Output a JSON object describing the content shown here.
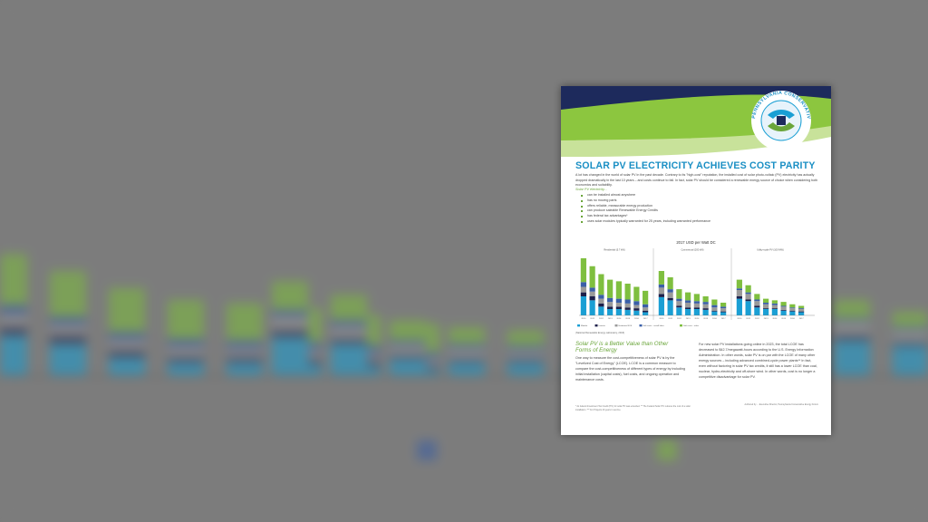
{
  "document": {
    "organization": "PENNSYLVANIA CONSERVATIVE ENERGY FORUM",
    "title": "SOLAR PV ELECTRICITY ACHIEVES COST PARITY",
    "intro": "A lot has changed in the world of solar PV in the past decade. Contrary to its \"high-cost\" reputation, the installed cost of solar photo-voltaic (PV) electricity has actually dropped dramatically in the last 10 years – and costs continue to fall. In fact, solar PV should be considered a renewable energy source of choice when considering both economics and suitability.",
    "intro_sub": "Solar PV electricity...",
    "bullets": [
      "can be installed almost anywhere",
      "has no moving parts",
      "offers reliable, measurable energy production",
      "can produce saleable Renewable Energy Credits",
      "has federal tax advantages*",
      "uses solar modules typically warranted for 25 years, including warranted performance"
    ],
    "chart_title": "2017 USD per Watt DC",
    "chart_source": "(National Renewable Energy Laboratory, 2016)",
    "section_heading": "Solar PV is a Better Value than Other Forms of Energy",
    "left_column": "One way to measure the cost-competitiveness of solar PV is by the \"Levelized Cost of Energy\" (LCOE). LCOE is a common measure to compare the cost-competitiveness of different types of energy by including initial installation (capital costs), fuel costs, and ongoing operation and maintenance costs.",
    "right_column": "For new solar PV installations going online in 2023, the total LCOE has decreased to $42.7/megawatt-hours according to the U.S. Energy Information Administration. In other words, solar PV is on par with the LCOE of many other energy sources – including advanced combined-cycle power plants** In fact, even without factoring in solar PV tax credits, it still has a lower LCOE than coal, nuclear, hydro-electricity and off-shore wind. In other words, cost is no longer a competitive disadvantage for solar PV.",
    "footnote": "* As federal Investment Tax Credit (ITC) for solar PV was extended. ** The Federal Solar ITC reduces the cost of a solar installation. *** For Projects 40 years in service.",
    "authors": "Authored by ... Executive Director, Pennsylvania Conservative Energy Forum"
  },
  "chart_data": {
    "type": "bar",
    "title": "2017 USD per Watt DC",
    "groups": [
      "Residential (5.7 kW)",
      "Commercial (200 kW)",
      "Utility-scale PV (100 MW)"
    ],
    "categories": [
      "2010",
      "2011",
      "2012",
      "2013",
      "2014",
      "2015",
      "2016",
      "2017"
    ],
    "series": [
      {
        "name": "Module",
        "color": "#1a9fd4"
      },
      {
        "name": "Inverter",
        "color": "#1d1f4a"
      },
      {
        "name": "Hardware BOS",
        "color": "#9a9a9a"
      },
      {
        "name": "Soft costs – install labor",
        "color": "#3a5fa8"
      },
      {
        "name": "Soft costs – other",
        "color": "#7fbf3f"
      }
    ],
    "stacks": [
      [
        [
          2.4,
          0.5,
          0.7,
          0.6,
          3.0
        ],
        [
          1.9,
          0.5,
          0.6,
          0.5,
          2.7
        ],
        [
          1.1,
          0.4,
          0.6,
          0.5,
          2.6
        ],
        [
          0.8,
          0.3,
          0.6,
          0.5,
          2.3
        ],
        [
          0.8,
          0.3,
          0.5,
          0.5,
          2.2
        ],
        [
          0.7,
          0.3,
          0.5,
          0.5,
          2.0
        ],
        [
          0.6,
          0.3,
          0.4,
          0.5,
          1.8
        ],
        [
          0.4,
          0.2,
          0.4,
          0.4,
          1.7
        ]
      ],
      [
        [
          2.3,
          0.4,
          0.8,
          0.4,
          1.7
        ],
        [
          1.9,
          0.3,
          0.7,
          0.4,
          1.5
        ],
        [
          1.0,
          0.2,
          0.6,
          0.3,
          1.2
        ],
        [
          0.8,
          0.2,
          0.6,
          0.3,
          1.0
        ],
        [
          0.8,
          0.2,
          0.5,
          0.3,
          0.9
        ],
        [
          0.7,
          0.2,
          0.5,
          0.3,
          0.7
        ],
        [
          0.5,
          0.1,
          0.4,
          0.3,
          0.7
        ],
        [
          0.4,
          0.1,
          0.4,
          0.2,
          0.5
        ]
      ],
      [
        [
          2.1,
          0.3,
          0.8,
          0.2,
          1.1
        ],
        [
          1.8,
          0.2,
          0.7,
          0.2,
          0.9
        ],
        [
          1.0,
          0.2,
          0.6,
          0.2,
          0.7
        ],
        [
          0.8,
          0.1,
          0.5,
          0.2,
          0.5
        ],
        [
          0.8,
          0.1,
          0.4,
          0.2,
          0.4
        ],
        [
          0.6,
          0.1,
          0.4,
          0.1,
          0.5
        ],
        [
          0.5,
          0.1,
          0.3,
          0.1,
          0.4
        ],
        [
          0.4,
          0.1,
          0.3,
          0.1,
          0.3
        ]
      ]
    ],
    "ylim": [
      0,
      8
    ]
  },
  "background": {
    "bar_colors": [
      "#1a9fd4",
      "#1d1f4a",
      "#9a9a9a",
      "#3a5fa8",
      "#7fbf3f"
    ]
  }
}
